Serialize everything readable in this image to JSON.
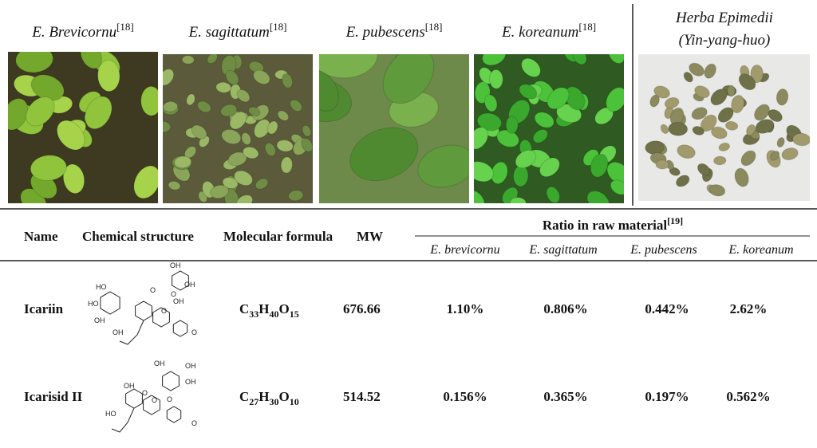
{
  "panels": [
    {
      "name": "E. Brevicornu",
      "ref": "[18]"
    },
    {
      "name": "E. sagittatum",
      "ref": "[18]"
    },
    {
      "name": "E. pubescens",
      "ref": "[18]"
    },
    {
      "name": "E. koreanum",
      "ref": "[18]"
    },
    {
      "name": "Herba Epimedii",
      "subtitle": "(Yin-yang-huo)"
    }
  ],
  "table": {
    "headers": [
      "Name",
      "Chemical structure",
      "Molecular formula",
      "MW"
    ],
    "group_header": "Ratio in raw material",
    "group_ref": "[19]",
    "subheaders": [
      "E. brevicornu",
      "E. sagittatum",
      "E. pubescens",
      "E. koreanum"
    ],
    "rows": [
      {
        "name": "Icariin",
        "structure_labels": [
          "OH",
          "OH",
          "OH",
          "HO",
          "HO",
          "OH",
          "OH",
          "O",
          "O",
          "O",
          "O"
        ],
        "formula": [
          "C",
          "33",
          "H",
          "40",
          "O",
          "15"
        ],
        "mw": "676.66",
        "ratios": [
          "1.10%",
          "0.806%",
          "0.442%",
          "2.62%"
        ]
      },
      {
        "name": "Icarisid II",
        "structure_labels": [
          "OH",
          "OH",
          "OH",
          "OH",
          "O",
          "O",
          "HO",
          "O",
          "O"
        ],
        "formula": [
          "C",
          "27",
          "H",
          "30",
          "O",
          "10"
        ],
        "mw": "514.52",
        "ratios": [
          "0.156%",
          "0.365%",
          "0.197%",
          "0.562%"
        ]
      }
    ]
  }
}
